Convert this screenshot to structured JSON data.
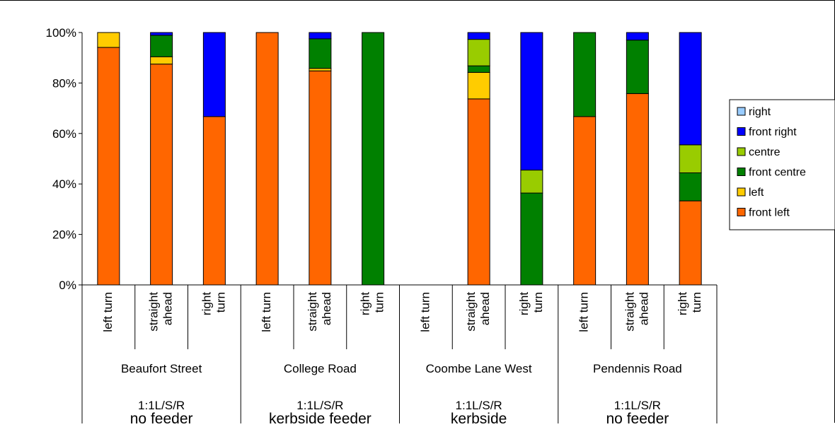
{
  "chart_data": {
    "type": "bar",
    "stacked": true,
    "percent": true,
    "ylim": [
      0,
      100
    ],
    "yticks": [
      "0%",
      "20%",
      "40%",
      "60%",
      "80%",
      "100%"
    ],
    "grid": false,
    "legend_position": "right",
    "groups": [
      {
        "name": "Beaufort Street",
        "config": "1:1L/S/R",
        "feeder": "no feeder"
      },
      {
        "name": "College Road",
        "config": "1:1L/S/R",
        "feeder": "kerbside feeder"
      },
      {
        "name": "Coombe Lane West",
        "config": "1:1L/S/R",
        "feeder": "kerbside"
      },
      {
        "name": "Pendennis Road",
        "config": "1:1L/S/R",
        "feeder": "no feeder"
      }
    ],
    "categories": [
      {
        "group": 0,
        "line1": "left turn",
        "line2": ""
      },
      {
        "group": 0,
        "line1": "straight",
        "line2": "ahead"
      },
      {
        "group": 0,
        "line1": "right",
        "line2": "turn"
      },
      {
        "group": 1,
        "line1": "left turn",
        "line2": ""
      },
      {
        "group": 1,
        "line1": "straight",
        "line2": "ahead"
      },
      {
        "group": 1,
        "line1": "right",
        "line2": "turn"
      },
      {
        "group": 2,
        "line1": "left turn",
        "line2": ""
      },
      {
        "group": 2,
        "line1": "straight",
        "line2": "ahead"
      },
      {
        "group": 2,
        "line1": "right",
        "line2": "turn"
      },
      {
        "group": 3,
        "line1": "left turn",
        "line2": ""
      },
      {
        "group": 3,
        "line1": "straight",
        "line2": "ahead"
      },
      {
        "group": 3,
        "line1": "right",
        "line2": "turn"
      }
    ],
    "series": [
      {
        "name": "front left",
        "color": "#ff6600",
        "values": [
          94.1,
          87.5,
          66.7,
          100,
          84.8,
          0,
          0,
          73.7,
          0,
          66.7,
          75.8,
          33.3
        ]
      },
      {
        "name": "left",
        "color": "#ffcc00",
        "values": [
          5.9,
          2.9,
          0,
          0,
          1.0,
          0,
          0,
          10.5,
          0,
          0,
          0,
          0
        ]
      },
      {
        "name": "front centre",
        "color": "#008000",
        "values": [
          0,
          8.5,
          0,
          0,
          11.7,
          100,
          0,
          2.6,
          36.4,
          33.3,
          21.2,
          11.1
        ]
      },
      {
        "name": "centre",
        "color": "#99cc00",
        "values": [
          0,
          0,
          0,
          0,
          0,
          0,
          0,
          10.5,
          9.1,
          0,
          0,
          11.1
        ]
      },
      {
        "name": "front right",
        "color": "#0000ff",
        "values": [
          0,
          1.1,
          33.3,
          0,
          2.5,
          0,
          0,
          2.7,
          54.5,
          0,
          3.0,
          44.5
        ]
      },
      {
        "name": "right",
        "color": "#99ccff",
        "values": [
          0,
          0,
          0,
          0,
          0,
          0,
          0,
          0,
          0,
          0,
          0,
          0
        ]
      }
    ],
    "legend_order": [
      "right",
      "front right",
      "centre",
      "front centre",
      "left",
      "front left"
    ]
  }
}
